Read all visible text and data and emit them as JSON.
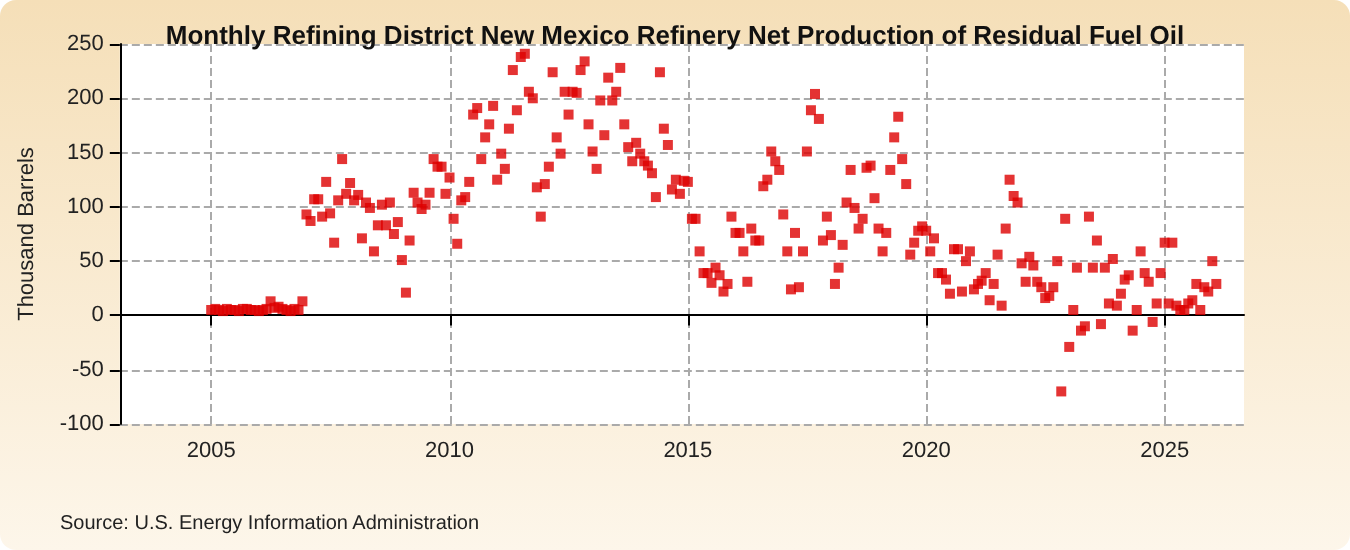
{
  "chart_data": {
    "type": "scatter",
    "title": "Monthly Refining District New Mexico Refinery Net Production of Residual Fuel Oil",
    "ylabel": "Thousand Barrels",
    "annotations": [
      "Source: U.S. Energy Information Administration"
    ],
    "xlim": [
      "2003-02",
      "2026-09"
    ],
    "xticks": [
      "2005",
      "2010",
      "2015",
      "2020",
      "2025"
    ],
    "ylim": [
      -100,
      250
    ],
    "yticks": [
      -100,
      -50,
      0,
      50,
      100,
      150,
      200,
      250
    ],
    "grid": true,
    "marker": "square",
    "x": [
      "2005-01",
      "2005-02",
      "2005-03",
      "2005-04",
      "2005-05",
      "2005-06",
      "2005-07",
      "2005-08",
      "2005-09",
      "2005-10",
      "2005-11",
      "2005-12",
      "2006-01",
      "2006-02",
      "2006-03",
      "2006-04",
      "2006-05",
      "2006-06",
      "2006-07",
      "2006-08",
      "2006-09",
      "2006-10",
      "2006-11",
      "2006-12",
      "2007-01",
      "2007-02",
      "2007-03",
      "2007-04",
      "2007-05",
      "2007-06",
      "2007-07",
      "2007-08",
      "2007-09",
      "2007-10",
      "2007-11",
      "2007-12",
      "2008-01",
      "2008-02",
      "2008-03",
      "2008-04",
      "2008-05",
      "2008-06",
      "2008-07",
      "2008-08",
      "2008-09",
      "2008-10",
      "2008-11",
      "2008-12",
      "2009-01",
      "2009-02",
      "2009-03",
      "2009-04",
      "2009-05",
      "2009-06",
      "2009-07",
      "2009-08",
      "2009-09",
      "2009-10",
      "2009-11",
      "2009-12",
      "2010-01",
      "2010-02",
      "2010-03",
      "2010-04",
      "2010-05",
      "2010-06",
      "2010-07",
      "2010-08",
      "2010-09",
      "2010-10",
      "2010-11",
      "2010-12",
      "2011-01",
      "2011-02",
      "2011-03",
      "2011-04",
      "2011-05",
      "2011-06",
      "2011-07",
      "2011-08",
      "2011-09",
      "2011-10",
      "2011-11",
      "2011-12",
      "2012-01",
      "2012-02",
      "2012-03",
      "2012-04",
      "2012-05",
      "2012-06",
      "2012-07",
      "2012-08",
      "2012-09",
      "2012-10",
      "2012-11",
      "2012-12",
      "2013-01",
      "2013-02",
      "2013-03",
      "2013-04",
      "2013-05",
      "2013-06",
      "2013-07",
      "2013-08",
      "2013-09",
      "2013-10",
      "2013-11",
      "2013-12",
      "2014-01",
      "2014-02",
      "2014-03",
      "2014-04",
      "2014-05",
      "2014-06",
      "2014-07",
      "2014-08",
      "2014-09",
      "2014-10",
      "2014-11",
      "2014-12",
      "2015-01",
      "2015-02",
      "2015-03",
      "2015-04",
      "2015-05",
      "2015-06",
      "2015-07",
      "2015-08",
      "2015-09",
      "2015-10",
      "2015-11",
      "2015-12",
      "2016-01",
      "2016-02",
      "2016-03",
      "2016-04",
      "2016-05",
      "2016-06",
      "2016-07",
      "2016-08",
      "2016-09",
      "2016-10",
      "2016-11",
      "2016-12",
      "2017-01",
      "2017-02",
      "2017-03",
      "2017-04",
      "2017-05",
      "2017-06",
      "2017-07",
      "2017-08",
      "2017-09",
      "2017-10",
      "2017-11",
      "2017-12",
      "2018-01",
      "2018-02",
      "2018-03",
      "2018-04",
      "2018-05",
      "2018-06",
      "2018-07",
      "2018-08",
      "2018-09",
      "2018-10",
      "2018-11",
      "2018-12",
      "2019-01",
      "2019-02",
      "2019-03",
      "2019-04",
      "2019-05",
      "2019-06",
      "2019-07",
      "2019-08",
      "2019-09",
      "2019-10",
      "2019-11",
      "2019-12",
      "2020-01",
      "2020-02",
      "2020-03",
      "2020-04",
      "2020-05",
      "2020-06",
      "2020-07",
      "2020-08",
      "2020-09",
      "2020-10",
      "2020-11",
      "2020-12",
      "2021-01",
      "2021-02",
      "2021-03",
      "2021-04",
      "2021-05",
      "2021-06",
      "2021-07",
      "2021-08",
      "2021-09",
      "2021-10",
      "2021-11",
      "2021-12",
      "2022-01",
      "2022-02",
      "2022-03",
      "2022-04",
      "2022-05",
      "2022-06",
      "2022-07",
      "2022-08",
      "2022-09",
      "2022-10",
      "2022-11",
      "2022-12",
      "2023-01",
      "2023-02",
      "2023-03",
      "2023-04",
      "2023-05",
      "2023-06",
      "2023-07",
      "2023-08",
      "2023-09",
      "2023-10",
      "2023-11",
      "2023-12",
      "2024-01",
      "2024-02",
      "2024-03",
      "2024-04",
      "2024-05",
      "2024-06",
      "2024-07",
      "2024-08",
      "2024-09",
      "2024-10",
      "2024-11",
      "2024-12",
      "2025-01",
      "2025-02",
      "2025-03",
      "2025-04",
      "2025-05",
      "2025-06",
      "2025-07",
      "2025-08",
      "2025-09",
      "2025-10",
      "2025-11",
      "2025-12",
      "2026-01",
      "2026-02"
    ],
    "series": [
      {
        "color": "#dd0000",
        "values": [
          5,
          6,
          5,
          4,
          6,
          5,
          5,
          4,
          6,
          6,
          5,
          5,
          4,
          5,
          6,
          13,
          7,
          8,
          6,
          5,
          4,
          6,
          5,
          13,
          93,
          87,
          107,
          107,
          91,
          123,
          94,
          67,
          106,
          144,
          112,
          122,
          106,
          111,
          71,
          104,
          99,
          59,
          83,
          102,
          83,
          104,
          75,
          86,
          51,
          21,
          69,
          113,
          104,
          98,
          102,
          113,
          144,
          137,
          137,
          112,
          127,
          89,
          66,
          106,
          109,
          123,
          185,
          191,
          144,
          164,
          176,
          193,
          125,
          149,
          135,
          172,
          226,
          189,
          238,
          241,
          206,
          200,
          118,
          91,
          121,
          137,
          224,
          164,
          149,
          206,
          185,
          206,
          205,
          226,
          234,
          176,
          151,
          135,
          198,
          166,
          219,
          198,
          206,
          228,
          176,
          155,
          142,
          159,
          149,
          142,
          138,
          131,
          109,
          224,
          172,
          157,
          116,
          125,
          112,
          124,
          123,
          89,
          89,
          59,
          39,
          39,
          30,
          44,
          37,
          22,
          29,
          91,
          76,
          76,
          59,
          31,
          80,
          69,
          69,
          119,
          125,
          151,
          142,
          134,
          93,
          59,
          24,
          76,
          26,
          59,
          151,
          189,
          204,
          181,
          69,
          91,
          74,
          29,
          44,
          65,
          104,
          134,
          99,
          80,
          89,
          136,
          138,
          108,
          80,
          59,
          76,
          134,
          164,
          183,
          144,
          121,
          56,
          67,
          78,
          82,
          78,
          59,
          71,
          39,
          39,
          33,
          20,
          61,
          61,
          22,
          50,
          59,
          24,
          29,
          32,
          39,
          14,
          29,
          56,
          9,
          80,
          125,
          110,
          104,
          48,
          31,
          54,
          46,
          31,
          26,
          16,
          18,
          26,
          50,
          -70,
          89,
          -29,
          5,
          44,
          -14,
          -10,
          91,
          44,
          69,
          -8,
          44,
          11,
          52,
          9,
          20,
          33,
          37,
          -14,
          5,
          59,
          39,
          31,
          -6,
          11,
          39,
          67,
          11,
          67,
          9,
          5,
          5,
          11,
          14,
          29,
          5,
          26,
          22,
          50,
          29
        ]
      }
    ]
  }
}
